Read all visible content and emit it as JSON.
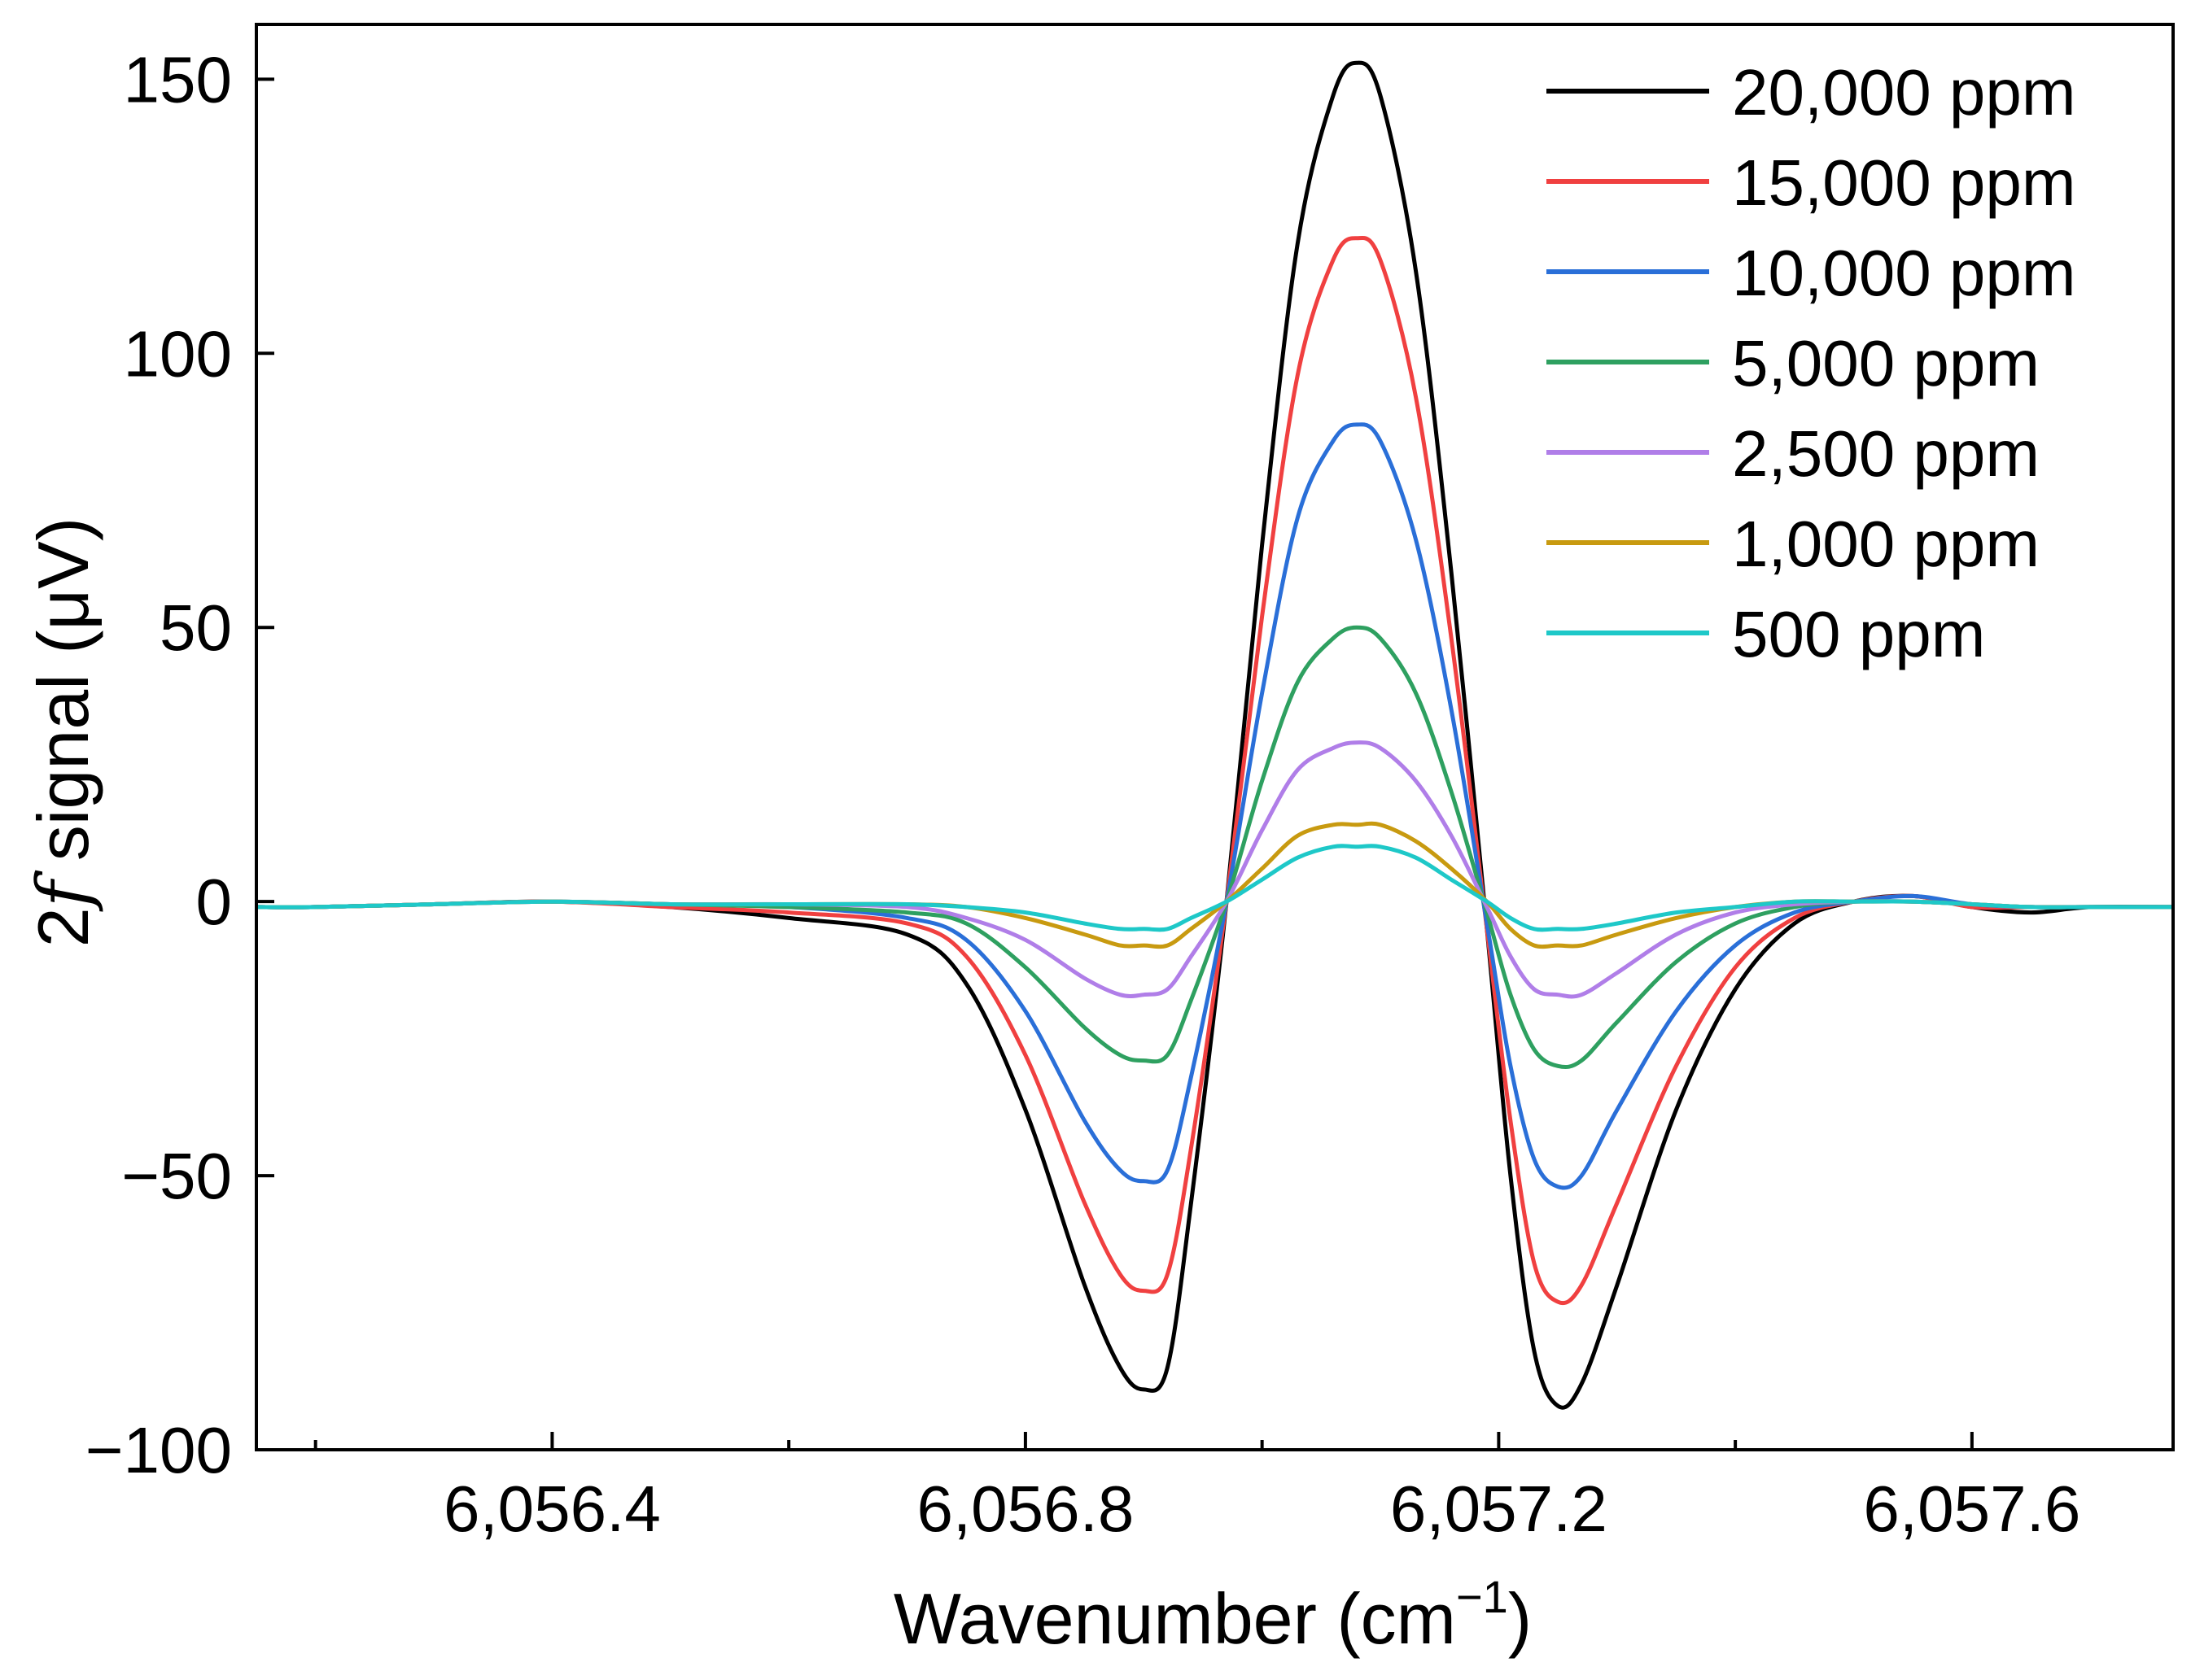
{
  "chart_data": {
    "type": "line",
    "title": "",
    "xlabel": "Wavenumber (cm",
    "xlabel_sup": "−1",
    "xlabel_close": ")",
    "ylabel_prefix": "2",
    "ylabel_italic": "f",
    "ylabel_suffix": " signal (μV)",
    "xlim": [
      6056.15,
      6057.77
    ],
    "ylim": [
      -100,
      160
    ],
    "x_ticks": [
      6056.4,
      6056.8,
      6057.2,
      6057.6
    ],
    "x_tick_labels": [
      "6,056.4",
      "6,056.8",
      "6,057.2",
      "6,057.6"
    ],
    "x_minor_ticks": [
      6056.2,
      6056.6,
      6057.0,
      6057.4
    ],
    "y_ticks": [
      -100,
      -50,
      0,
      50,
      100,
      150
    ],
    "y_tick_labels": [
      "−100",
      "−50",
      "0",
      "50",
      "100",
      "150"
    ],
    "grid": false,
    "legend_position": "top-right",
    "x": [
      6056.15,
      6056.2,
      6056.3,
      6056.4,
      6056.5,
      6056.6,
      6056.7,
      6056.75,
      6056.8,
      6056.85,
      6056.88,
      6056.9,
      6056.92,
      6056.94,
      6056.97,
      6057.0,
      6057.03,
      6057.06,
      6057.08,
      6057.1,
      6057.13,
      6057.16,
      6057.19,
      6057.21,
      6057.23,
      6057.25,
      6057.27,
      6057.3,
      6057.35,
      6057.4,
      6057.45,
      6057.5,
      6057.55,
      6057.6,
      6057.65,
      6057.7,
      6057.77
    ],
    "series": [
      {
        "name": "20,000 ppm",
        "color": "#000000",
        "values": [
          -1,
          -1,
          -0.5,
          0,
          -1,
          -3,
          -6,
          -15,
          -38,
          -70,
          -85,
          -89,
          -85,
          -55,
          0,
          65,
          120,
          147,
          153,
          147,
          115,
          60,
          -5,
          -50,
          -82,
          -92,
          -88,
          -70,
          -38,
          -16,
          -4,
          0,
          1,
          -1,
          -2,
          -1,
          -1
        ]
      },
      {
        "name": "15,000 ppm",
        "color": "#f04040",
        "values": [
          -1,
          -1,
          -0.5,
          0,
          -1,
          -2,
          -4,
          -10,
          -28,
          -55,
          -68,
          -71,
          -68,
          -45,
          0,
          52,
          96,
          117,
          121,
          117,
          92,
          48,
          -5,
          -40,
          -66,
          -73,
          -70,
          -55,
          -30,
          -12,
          -3,
          0,
          1,
          -1,
          -1,
          -1,
          -1
        ]
      },
      {
        "name": "10,000 ppm",
        "color": "#2a6fd8",
        "values": [
          -1,
          -1,
          -0.5,
          0,
          -0.5,
          -1,
          -3,
          -7,
          -20,
          -40,
          -49,
          -51,
          -49,
          -32,
          0,
          38,
          70,
          84,
          87,
          84,
          66,
          35,
          -4,
          -30,
          -47,
          -52,
          -50,
          -38,
          -20,
          -8,
          -2,
          0,
          1,
          -0.5,
          -1,
          -1,
          -1
        ]
      },
      {
        "name": "5,000 ppm",
        "color": "#2ea060",
        "values": [
          -1,
          -1,
          -0.5,
          0,
          -0.5,
          -1,
          -2,
          -4,
          -12,
          -23,
          -28,
          -29,
          -28,
          -18,
          0,
          22,
          40,
          48,
          50,
          48,
          38,
          20,
          -2,
          -17,
          -27,
          -30,
          -29,
          -22,
          -11,
          -4,
          -1,
          0,
          0,
          -0.5,
          -1,
          -1,
          -1
        ]
      },
      {
        "name": "2,500 ppm",
        "color": "#b07ee8",
        "values": [
          -1,
          -1,
          -0.5,
          0,
          -0.5,
          -0.5,
          -1,
          -3,
          -7,
          -14,
          -17,
          -17,
          -16,
          -10,
          0,
          13,
          24,
          28,
          29,
          28,
          22,
          12,
          -1,
          -10,
          -16,
          -17,
          -17,
          -13,
          -6,
          -2,
          -0.5,
          0,
          0,
          -0.5,
          -1,
          -1,
          -1
        ]
      },
      {
        "name": "1,000 ppm",
        "color": "#c89a10",
        "values": [
          -1,
          -1,
          -0.5,
          0,
          -0.5,
          -0.5,
          -0.5,
          -1,
          -3,
          -6,
          -8,
          -8,
          -8,
          -5,
          0,
          6,
          12,
          14,
          14,
          14,
          11,
          6,
          0,
          -5,
          -8,
          -8,
          -8,
          -6,
          -3,
          -1,
          0,
          0,
          0,
          -0.5,
          -1,
          -1,
          -1
        ]
      },
      {
        "name": "500 ppm",
        "color": "#1ec8c8",
        "values": [
          -1,
          -1,
          -0.5,
          0,
          -0.5,
          -0.5,
          -0.5,
          -1,
          -2,
          -4,
          -5,
          -5,
          -5,
          -3,
          0,
          4,
          8,
          10,
          10,
          10,
          8,
          4,
          0,
          -3,
          -5,
          -5,
          -5,
          -4,
          -2,
          -1,
          0,
          0,
          0,
          -0.5,
          -1,
          -1,
          -1
        ]
      }
    ]
  }
}
